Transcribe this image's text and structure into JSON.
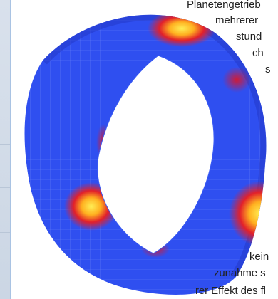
{
  "article_text_fragments": [
    "Planetengetrieb",
    "mehrerer",
    "stund",
    "ch",
    "s",
    "kein",
    "zunahme s",
    "rer Effekt des fl"
  ],
  "colors": {
    "surface_blue": "#2f4ff0",
    "hotspot_red": "#d8142a",
    "hotspot_yellow": "#ffee55",
    "mesh_line": "#8fa6ff"
  }
}
